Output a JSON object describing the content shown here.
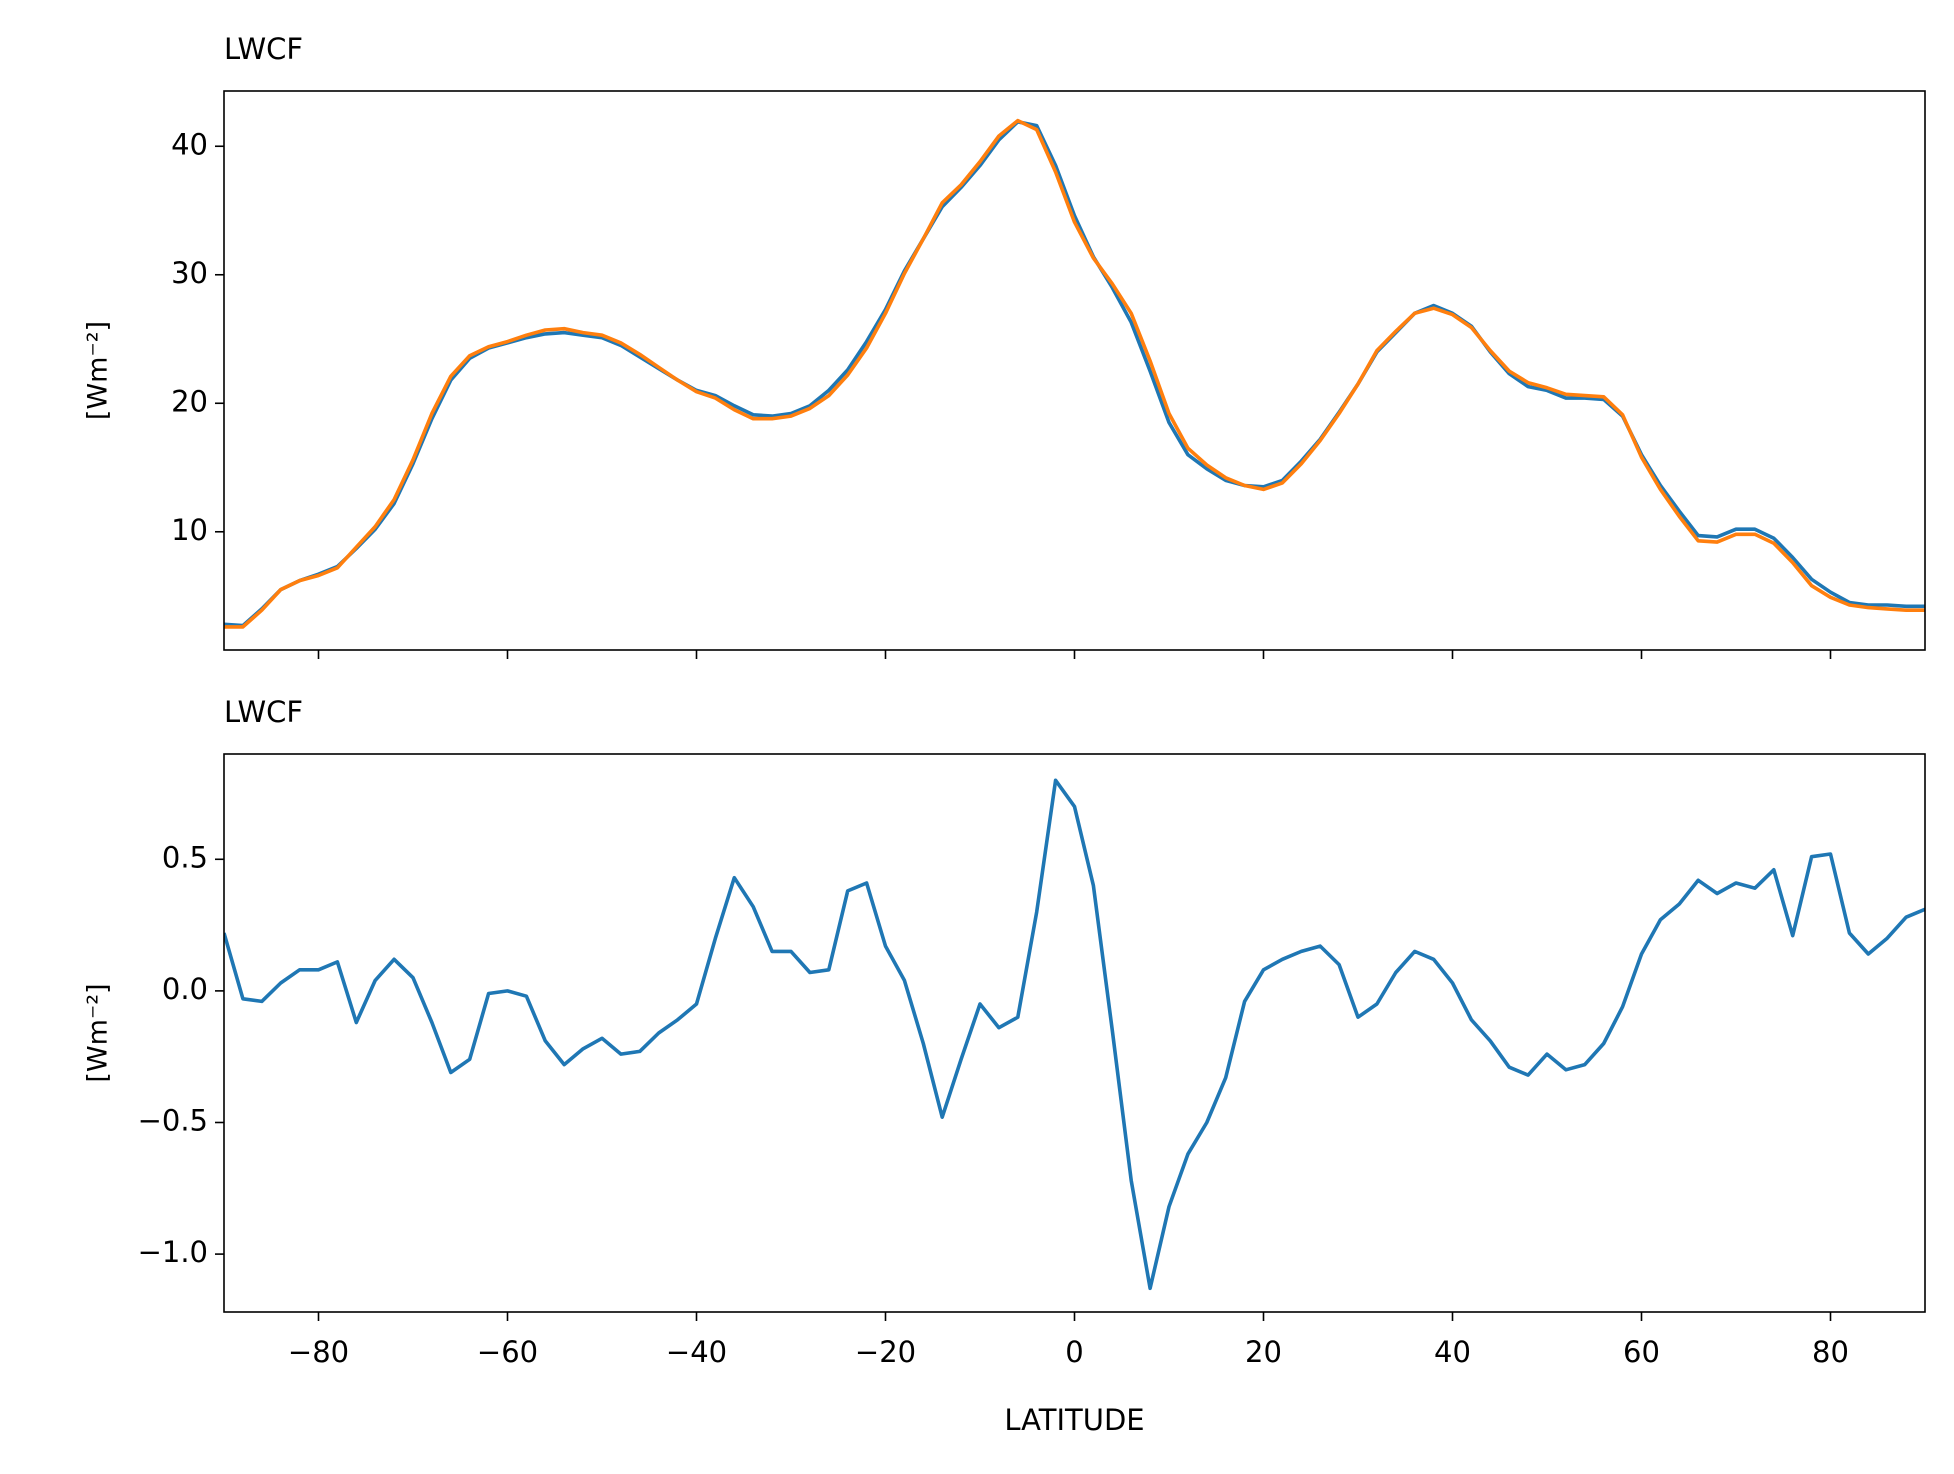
{
  "chart_data": [
    {
      "type": "line",
      "title": "LWCF",
      "ylabel": "[Wm⁻²]",
      "x": [
        -90,
        -88,
        -86,
        -84,
        -82,
        -80,
        -78,
        -76,
        -74,
        -72,
        -70,
        -68,
        -66,
        -64,
        -62,
        -60,
        -58,
        -56,
        -54,
        -52,
        -50,
        -48,
        -46,
        -44,
        -42,
        -40,
        -38,
        -36,
        -34,
        -32,
        -30,
        -28,
        -26,
        -24,
        -22,
        -20,
        -18,
        -16,
        -14,
        -12,
        -10,
        -8,
        -6,
        -4,
        -2,
        0,
        2,
        4,
        6,
        8,
        10,
        12,
        14,
        16,
        18,
        20,
        22,
        24,
        26,
        28,
        30,
        32,
        34,
        36,
        38,
        40,
        42,
        44,
        46,
        48,
        50,
        52,
        54,
        56,
        58,
        60,
        62,
        64,
        66,
        68,
        70,
        72,
        74,
        76,
        78,
        80,
        82,
        84,
        86,
        88,
        90
      ],
      "series": [
        {
          "color": "#1f77b4",
          "values": [
            2.8,
            2.7,
            4.0,
            5.5,
            6.2,
            6.7,
            7.3,
            8.7,
            10.2,
            12.2,
            15.3,
            18.8,
            21.8,
            23.5,
            24.3,
            24.7,
            25.1,
            25.4,
            25.5,
            25.3,
            25.1,
            24.5,
            23.6,
            22.7,
            21.8,
            21.0,
            20.6,
            19.8,
            19.1,
            19.0,
            19.2,
            19.8,
            21.0,
            22.6,
            24.8,
            27.3,
            30.3,
            32.8,
            35.3,
            36.8,
            38.5,
            40.5,
            41.9,
            41.6,
            38.5,
            34.6,
            31.4,
            29.0,
            26.3,
            22.5,
            18.5,
            16.0,
            14.9,
            14.0,
            13.6,
            13.5,
            14.0,
            15.5,
            17.2,
            19.3,
            21.5,
            24.0,
            25.5,
            27.0,
            27.6,
            27.0,
            26.0,
            24.0,
            22.3,
            21.3,
            21.0,
            20.4,
            20.4,
            20.3,
            19.0,
            16.0,
            13.6,
            11.6,
            9.7,
            9.6,
            10.2,
            10.2,
            9.5,
            8.0,
            6.3,
            5.3,
            4.5,
            4.3,
            4.3,
            4.2,
            4.2
          ]
        },
        {
          "color": "#ff7f0e",
          "values": [
            2.6,
            2.6,
            3.9,
            5.5,
            6.2,
            6.6,
            7.2,
            8.8,
            10.4,
            12.5,
            15.6,
            19.2,
            22.1,
            23.7,
            24.4,
            24.8,
            25.3,
            25.7,
            25.8,
            25.5,
            25.3,
            24.7,
            23.8,
            22.8,
            21.8,
            20.9,
            20.4,
            19.5,
            18.8,
            18.8,
            19.0,
            19.6,
            20.6,
            22.2,
            24.3,
            27.0,
            30.1,
            32.8,
            35.6,
            37.0,
            38.8,
            40.8,
            42.0,
            41.3,
            38.0,
            34.1,
            31.3,
            29.3,
            27.0,
            23.3,
            19.2,
            16.5,
            15.2,
            14.2,
            13.6,
            13.3,
            13.8,
            15.3,
            17.1,
            19.2,
            21.5,
            24.1,
            25.6,
            27.0,
            27.4,
            26.9,
            25.9,
            24.1,
            22.5,
            21.6,
            21.2,
            20.7,
            20.6,
            20.5,
            19.1,
            15.8,
            13.3,
            11.2,
            9.3,
            9.2,
            9.8,
            9.8,
            9.1,
            7.6,
            5.8,
            4.9,
            4.3,
            4.1,
            4.0,
            3.9,
            3.9
          ]
        }
      ],
      "xlim": [
        -90,
        90
      ],
      "xticks": [
        -80,
        -60,
        -40,
        -20,
        0,
        20,
        40,
        60,
        80
      ],
      "ylim": [
        0.8,
        44.3
      ],
      "yticks": [
        10,
        20,
        30,
        40
      ]
    },
    {
      "type": "line",
      "title": "LWCF",
      "ylabel": "[Wm⁻²]",
      "xlabel": "LATITUDE",
      "x": [
        -90,
        -88,
        -86,
        -84,
        -82,
        -80,
        -78,
        -76,
        -74,
        -72,
        -70,
        -68,
        -66,
        -64,
        -62,
        -60,
        -58,
        -56,
        -54,
        -52,
        -50,
        -48,
        -46,
        -44,
        -42,
        -40,
        -38,
        -36,
        -34,
        -32,
        -30,
        -28,
        -26,
        -24,
        -22,
        -20,
        -18,
        -16,
        -14,
        -12,
        -10,
        -8,
        -6,
        -4,
        -2,
        0,
        2,
        4,
        6,
        8,
        10,
        12,
        14,
        16,
        18,
        20,
        22,
        24,
        26,
        28,
        30,
        32,
        34,
        36,
        38,
        40,
        42,
        44,
        46,
        48,
        50,
        52,
        54,
        56,
        58,
        60,
        62,
        64,
        66,
        68,
        70,
        72,
        74,
        76,
        78,
        80,
        82,
        84,
        86,
        88,
        90
      ],
      "series": [
        {
          "color": "#1f77b4",
          "values": [
            0.22,
            -0.03,
            -0.04,
            0.03,
            0.08,
            0.08,
            0.11,
            -0.12,
            0.04,
            0.12,
            0.05,
            -0.12,
            -0.31,
            -0.26,
            -0.01,
            0.0,
            -0.02,
            -0.19,
            -0.28,
            -0.22,
            -0.18,
            -0.24,
            -0.23,
            -0.16,
            -0.11,
            -0.05,
            0.2,
            0.43,
            0.32,
            0.15,
            0.15,
            0.07,
            0.08,
            0.38,
            0.41,
            0.17,
            0.04,
            -0.2,
            -0.48,
            -0.26,
            -0.05,
            -0.14,
            -0.1,
            0.3,
            0.8,
            0.7,
            0.4,
            -0.15,
            -0.72,
            -1.13,
            -0.82,
            -0.62,
            -0.5,
            -0.33,
            -0.04,
            0.08,
            0.12,
            0.15,
            0.17,
            0.1,
            -0.1,
            -0.05,
            0.07,
            0.15,
            0.12,
            0.03,
            -0.11,
            -0.19,
            -0.29,
            -0.32,
            -0.24,
            -0.3,
            -0.28,
            -0.2,
            -0.06,
            0.14,
            0.27,
            0.33,
            0.42,
            0.37,
            0.41,
            0.39,
            0.46,
            0.21,
            0.51,
            0.52,
            0.22,
            0.14,
            0.2,
            0.28,
            0.31
          ]
        }
      ],
      "xlim": [
        -90,
        90
      ],
      "xticks": [
        {
          "value": -80,
          "label": "−80"
        },
        {
          "value": -60,
          "label": "−60"
        },
        {
          "value": -40,
          "label": "−40"
        },
        {
          "value": -20,
          "label": "−20"
        },
        0,
        20,
        40,
        60,
        80
      ],
      "ylim": [
        -1.22,
        0.9
      ],
      "yticks": [
        {
          "value": -1.0,
          "label": "−1.0"
        },
        {
          "value": -0.5,
          "label": "−0.5"
        },
        {
          "value": 0,
          "label": "0.0"
        },
        {
          "value": 0.5,
          "label": "0.5"
        }
      ]
    }
  ]
}
